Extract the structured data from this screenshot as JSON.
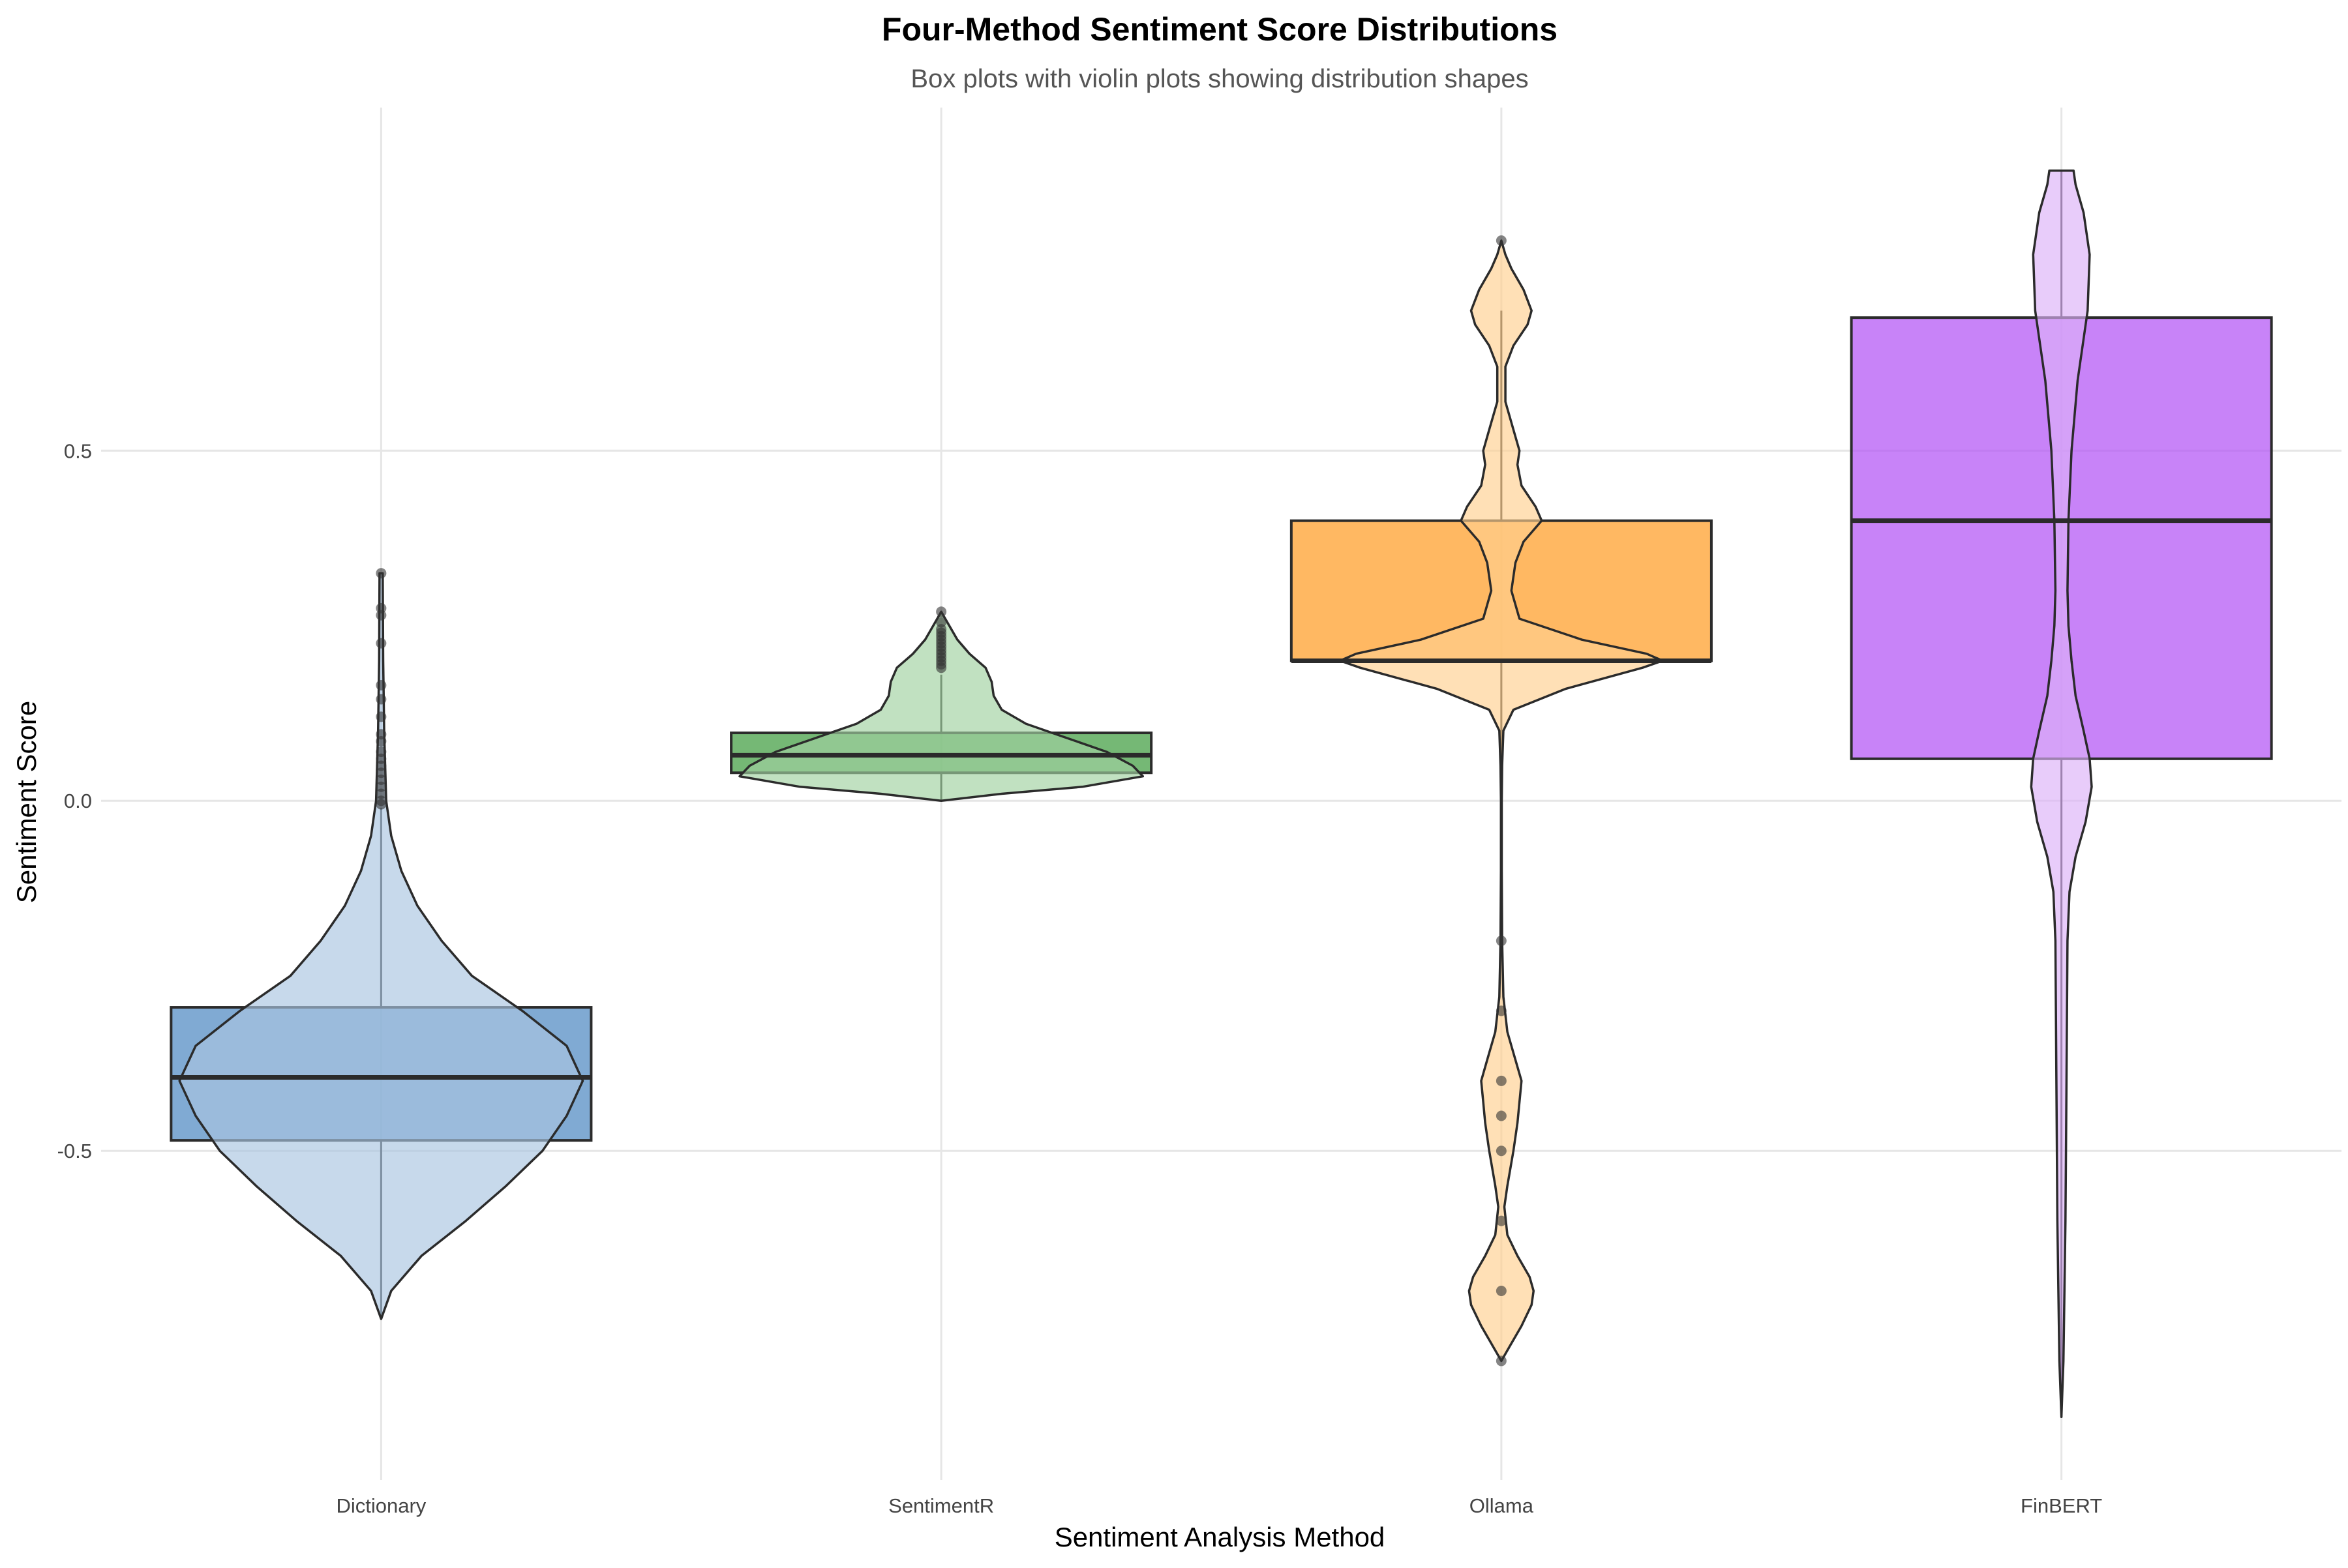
{
  "chart_data": {
    "type": "box",
    "title": "Four-Method Sentiment Score Distributions",
    "subtitle": "Box plots with violin plots showing distribution shapes",
    "xlabel": "Sentiment Analysis Method",
    "ylabel": "Sentiment Score",
    "ylim": [
      -0.97,
      0.99
    ],
    "yticks": [
      -0.5,
      0.0,
      0.5
    ],
    "ytick_labels": [
      "-0.5",
      "0.0",
      "0.5"
    ],
    "grid": true,
    "categories": [
      "Dictionary",
      "SentimentR",
      "Ollama",
      "FinBERT"
    ],
    "series": [
      {
        "category": "Dictionary",
        "color": "#4a86c0",
        "violin_color": "#a9c5e0",
        "box": {
          "q1": -0.485,
          "median": -0.395,
          "q3": -0.295,
          "whisker_low": -0.74,
          "whisker_high": -0.01
        },
        "outliers": [
          0.325,
          0.275,
          0.265,
          0.225,
          0.165,
          0.145,
          0.12,
          0.095,
          0.085,
          0.07,
          0.06,
          0.05,
          0.04,
          0.03,
          0.02,
          0.01,
          0.0,
          -0.005
        ],
        "violin": [
          [
            -0.74,
            0.0
          ],
          [
            -0.7,
            0.05
          ],
          [
            -0.65,
            0.2
          ],
          [
            -0.6,
            0.42
          ],
          [
            -0.55,
            0.62
          ],
          [
            -0.5,
            0.8
          ],
          [
            -0.45,
            0.92
          ],
          [
            -0.4,
            1.0
          ],
          [
            -0.35,
            0.92
          ],
          [
            -0.3,
            0.7
          ],
          [
            -0.25,
            0.45
          ],
          [
            -0.2,
            0.3
          ],
          [
            -0.15,
            0.18
          ],
          [
            -0.1,
            0.1
          ],
          [
            -0.05,
            0.05
          ],
          [
            0.0,
            0.025
          ],
          [
            0.1,
            0.015
          ],
          [
            0.2,
            0.01
          ],
          [
            0.325,
            0.008
          ]
        ]
      },
      {
        "category": "SentimentR",
        "color": "#3b9a3b",
        "violin_color": "#9fd19f",
        "box": {
          "q1": 0.04,
          "median": 0.065,
          "q3": 0.097,
          "whisker_low": 0.0,
          "whisker_high": 0.18
        },
        "outliers": [
          0.27,
          0.255,
          0.245,
          0.24,
          0.235,
          0.23,
          0.225,
          0.22,
          0.215,
          0.21,
          0.205,
          0.2,
          0.195,
          0.19
        ],
        "violin": [
          [
            0.0,
            0.0
          ],
          [
            0.01,
            0.3
          ],
          [
            0.02,
            0.7
          ],
          [
            0.035,
            1.0
          ],
          [
            0.05,
            0.95
          ],
          [
            0.07,
            0.82
          ],
          [
            0.09,
            0.62
          ],
          [
            0.11,
            0.42
          ],
          [
            0.13,
            0.3
          ],
          [
            0.15,
            0.26
          ],
          [
            0.17,
            0.25
          ],
          [
            0.19,
            0.22
          ],
          [
            0.21,
            0.14
          ],
          [
            0.23,
            0.08
          ],
          [
            0.25,
            0.04
          ],
          [
            0.27,
            0.0
          ]
        ]
      },
      {
        "category": "Ollama",
        "color": "#ff9a1f",
        "violin_color": "#ffcf8f",
        "box": {
          "q1": 0.2,
          "median": 0.2,
          "q3": 0.4,
          "whisker_low": 0.0,
          "whisker_high": 0.7
        },
        "outliers": [
          0.8,
          -0.2,
          -0.3,
          -0.4,
          -0.45,
          -0.5,
          -0.6,
          -0.7,
          -0.8
        ],
        "violin": [
          [
            -0.8,
            0.0
          ],
          [
            -0.78,
            0.04
          ],
          [
            -0.75,
            0.1
          ],
          [
            -0.72,
            0.15
          ],
          [
            -0.7,
            0.16
          ],
          [
            -0.68,
            0.14
          ],
          [
            -0.65,
            0.08
          ],
          [
            -0.62,
            0.03
          ],
          [
            -0.58,
            0.015
          ],
          [
            -0.55,
            0.03
          ],
          [
            -0.5,
            0.06
          ],
          [
            -0.46,
            0.08
          ],
          [
            -0.43,
            0.09
          ],
          [
            -0.4,
            0.1
          ],
          [
            -0.37,
            0.07
          ],
          [
            -0.33,
            0.03
          ],
          [
            -0.28,
            0.01
          ],
          [
            -0.2,
            0.004
          ],
          [
            -0.1,
            0.002
          ],
          [
            0.0,
            0.002
          ],
          [
            0.05,
            0.004
          ],
          [
            0.1,
            0.01
          ],
          [
            0.13,
            0.06
          ],
          [
            0.16,
            0.32
          ],
          [
            0.19,
            0.7
          ],
          [
            0.2,
            0.8
          ],
          [
            0.21,
            0.72
          ],
          [
            0.23,
            0.4
          ],
          [
            0.26,
            0.09
          ],
          [
            0.3,
            0.05
          ],
          [
            0.34,
            0.07
          ],
          [
            0.37,
            0.11
          ],
          [
            0.4,
            0.2
          ],
          [
            0.42,
            0.17
          ],
          [
            0.45,
            0.1
          ],
          [
            0.48,
            0.08
          ],
          [
            0.5,
            0.09
          ],
          [
            0.53,
            0.06
          ],
          [
            0.57,
            0.02
          ],
          [
            0.62,
            0.02
          ],
          [
            0.65,
            0.06
          ],
          [
            0.68,
            0.13
          ],
          [
            0.7,
            0.15
          ],
          [
            0.73,
            0.11
          ],
          [
            0.76,
            0.05
          ],
          [
            0.78,
            0.02
          ],
          [
            0.8,
            0.0
          ]
        ]
      },
      {
        "category": "FinBERT",
        "color": "#b14ef5",
        "violin_color": "#dbb0f8",
        "box": {
          "q1": 0.06,
          "median": 0.4,
          "q3": 0.69,
          "whisker_low": -0.88,
          "whisker_high": 0.9
        },
        "outliers": [],
        "violin": [
          [
            -0.88,
            0.0
          ],
          [
            -0.8,
            0.01
          ],
          [
            -0.6,
            0.02
          ],
          [
            -0.4,
            0.025
          ],
          [
            -0.2,
            0.03
          ],
          [
            -0.13,
            0.04
          ],
          [
            -0.08,
            0.07
          ],
          [
            -0.03,
            0.12
          ],
          [
            0.02,
            0.15
          ],
          [
            0.06,
            0.14
          ],
          [
            0.1,
            0.11
          ],
          [
            0.15,
            0.07
          ],
          [
            0.2,
            0.05
          ],
          [
            0.25,
            0.035
          ],
          [
            0.3,
            0.03
          ],
          [
            0.4,
            0.035
          ],
          [
            0.5,
            0.05
          ],
          [
            0.6,
            0.08
          ],
          [
            0.7,
            0.13
          ],
          [
            0.78,
            0.14
          ],
          [
            0.84,
            0.11
          ],
          [
            0.88,
            0.07
          ],
          [
            0.9,
            0.06
          ]
        ]
      }
    ]
  }
}
